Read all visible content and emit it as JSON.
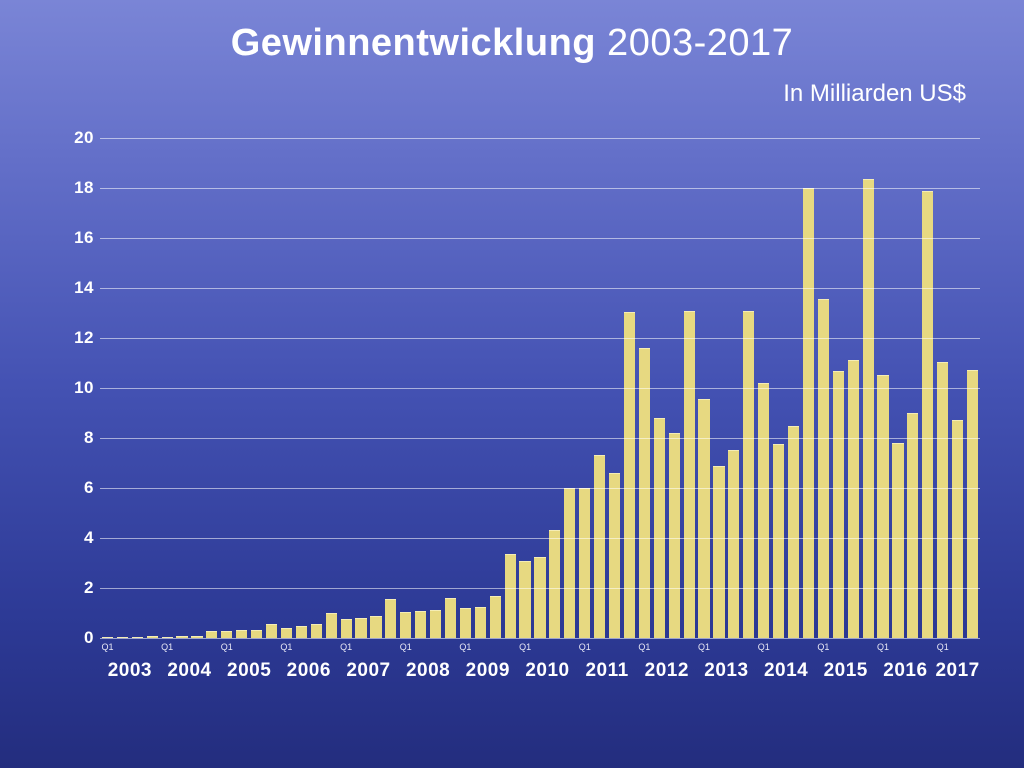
{
  "title_bold": "Gewinnentwicklung",
  "title_rest": " 2003-2017",
  "subtitle": "In Milliarden US$",
  "chart": {
    "type": "bar",
    "bar_color": "#e7d981",
    "grid_color": "rgba(255,255,255,0.55)",
    "text_color": "#ffffff",
    "background_gradient": [
      "#7a85d6",
      "#232d7e"
    ],
    "ylim": [
      0,
      20
    ],
    "ytick_step": 2,
    "y_ticks": [
      0,
      2,
      4,
      6,
      8,
      10,
      12,
      14,
      16,
      18,
      20
    ],
    "title_fontsize": 38,
    "subtitle_fontsize": 24,
    "ytick_fontsize": 17,
    "year_fontsize": 19,
    "q1_fontsize": 9,
    "bar_gap_ratio": 0.25,
    "years": [
      2003,
      2004,
      2005,
      2006,
      2007,
      2008,
      2009,
      2010,
      2011,
      2012,
      2013,
      2014,
      2015,
      2016,
      2017
    ],
    "q1_label": "Q1",
    "values": [
      0.02,
      0.01,
      0.02,
      0.07,
      0.05,
      0.08,
      0.1,
      0.3,
      0.3,
      0.32,
      0.34,
      0.57,
      0.41,
      0.47,
      0.55,
      1.0,
      0.77,
      0.82,
      0.9,
      1.58,
      1.05,
      1.07,
      1.12,
      1.6,
      1.21,
      1.23,
      1.67,
      3.38,
      3.07,
      3.25,
      4.31,
      6.0,
      5.99,
      7.31,
      6.62,
      13.06,
      11.6,
      8.82,
      8.22,
      13.08,
      9.55,
      6.9,
      7.51,
      13.07,
      10.22,
      7.75,
      8.47,
      18.02,
      13.57,
      10.7,
      11.12,
      18.36,
      10.52,
      7.8,
      9.01,
      17.89,
      11.03,
      8.72,
      10.71
    ]
  }
}
